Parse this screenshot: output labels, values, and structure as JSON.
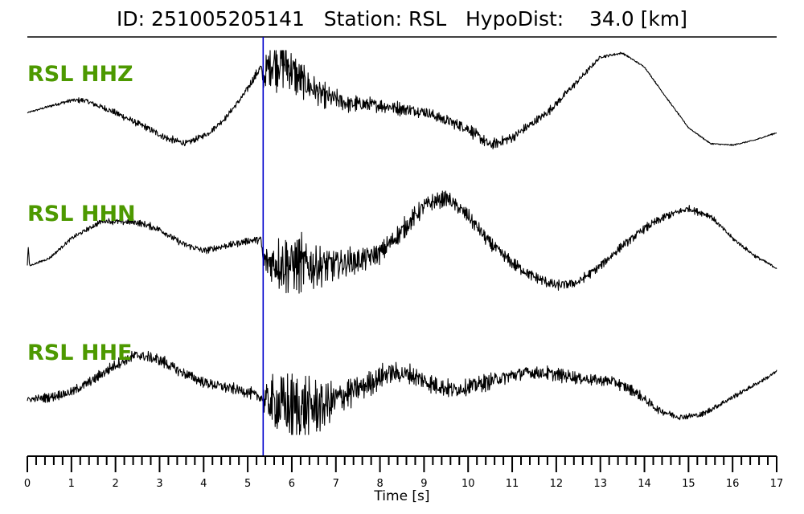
{
  "title": "ID: 251005205141   Station: RSL   HypoDist:    34.0 [km]",
  "colors": {
    "trace": "#000000",
    "label": "#4d9900",
    "pick_line": "#0000cc",
    "axis": "#000000"
  },
  "chart_data": {
    "type": "line",
    "title": "ID: 251005205141   Station: RSL   HypoDist:    34.0 [km]",
    "xlabel": "Time [s]",
    "ylabel": "",
    "xlim": [
      0,
      17
    ],
    "x_ticks": [
      0,
      1,
      2,
      3,
      4,
      5,
      6,
      7,
      8,
      9,
      10,
      11,
      12,
      13,
      14,
      15,
      16,
      17
    ],
    "minor_tick_step": 0.2,
    "pick_time": 5.35,
    "y_axis": "relative amplitude, each trace normalized to its own lane (no printed scale)",
    "series": [
      {
        "name": "RSL HHZ",
        "t": [
          0,
          0.5,
          1.0,
          1.3,
          2.0,
          2.7,
          3.2,
          3.6,
          4.1,
          4.5,
          4.9,
          5.3,
          5.35,
          5.5,
          5.8,
          6.2,
          6.7,
          7.3,
          8.0,
          9.0,
          10.0,
          10.5,
          11.0,
          11.8,
          12.5,
          13.0,
          13.5,
          14.0,
          14.5,
          15.0,
          15.5,
          16.0,
          16.5,
          17.0
        ],
        "y": [
          -0.2,
          -0.07,
          0.05,
          0.05,
          -0.2,
          -0.5,
          -0.73,
          -0.82,
          -0.62,
          -0.3,
          0.15,
          0.72,
          0.45,
          0.8,
          0.85,
          0.45,
          0.15,
          -0.02,
          -0.05,
          -0.18,
          -0.52,
          -0.85,
          -0.7,
          -0.2,
          0.45,
          0.92,
          1.0,
          0.72,
          0.1,
          -0.5,
          -0.82,
          -0.85,
          -0.75,
          -0.6
        ],
        "noise": [
          0.02,
          0.04,
          0.06,
          0.08,
          0.1,
          0.1,
          0.12,
          0.1,
          0.08,
          0.08,
          0.1,
          0.15,
          0.25,
          0.75,
          0.8,
          0.55,
          0.35,
          0.25,
          0.2,
          0.18,
          0.18,
          0.16,
          0.15,
          0.12,
          0.1,
          0.05,
          0.03,
          0.02,
          0.02,
          0.02,
          0.02,
          0.02,
          0.02,
          0.02
        ]
      },
      {
        "name": "RSL HHN",
        "t": [
          0,
          0.02,
          0.05,
          0.5,
          1.0,
          1.7,
          2.5,
          3.0,
          3.5,
          4.0,
          4.5,
          5.0,
          5.3,
          5.35,
          5.8,
          6.5,
          7.0,
          7.5,
          8.0,
          8.5,
          9.0,
          9.5,
          10.0,
          10.5,
          11.0,
          11.5,
          12.0,
          12.5,
          13.0,
          13.5,
          14.0,
          14.5,
          15.0,
          15.5,
          16.0,
          16.5,
          17.0
        ],
        "y": [
          -0.45,
          -0.05,
          -0.45,
          -0.3,
          0.1,
          0.45,
          0.42,
          0.28,
          0.0,
          -0.15,
          -0.05,
          0.05,
          0.08,
          -0.35,
          -0.4,
          -0.45,
          -0.42,
          -0.35,
          -0.2,
          0.25,
          0.75,
          0.92,
          0.55,
          0.0,
          -0.4,
          -0.68,
          -0.85,
          -0.78,
          -0.45,
          -0.05,
          0.3,
          0.55,
          0.7,
          0.55,
          0.1,
          -0.25,
          -0.5
        ],
        "noise": [
          0.02,
          0.02,
          0.02,
          0.04,
          0.06,
          0.08,
          0.1,
          0.1,
          0.1,
          0.1,
          0.1,
          0.1,
          0.12,
          0.4,
          0.9,
          0.7,
          0.5,
          0.38,
          0.3,
          0.28,
          0.25,
          0.22,
          0.22,
          0.2,
          0.18,
          0.16,
          0.16,
          0.14,
          0.12,
          0.12,
          0.12,
          0.12,
          0.1,
          0.08,
          0.06,
          0.05,
          0.04
        ]
      },
      {
        "name": "RSL HHE",
        "t": [
          0,
          0.5,
          1.0,
          1.5,
          2.0,
          2.5,
          3.0,
          3.5,
          4.0,
          4.5,
          5.0,
          5.3,
          5.4,
          5.8,
          6.3,
          6.8,
          7.2,
          7.7,
          8.2,
          8.7,
          9.2,
          9.7,
          10.2,
          10.8,
          11.3,
          11.8,
          12.3,
          12.8,
          13.3,
          13.8,
          14.3,
          14.8,
          15.3,
          15.8,
          16.3,
          16.8,
          17.0
        ],
        "y": [
          -0.35,
          -0.3,
          -0.2,
          0.05,
          0.35,
          0.55,
          0.45,
          0.2,
          0.0,
          -0.1,
          -0.2,
          -0.3,
          -0.35,
          -0.5,
          -0.55,
          -0.45,
          -0.25,
          -0.05,
          0.2,
          0.15,
          -0.05,
          -0.15,
          -0.05,
          0.1,
          0.2,
          0.18,
          0.12,
          0.05,
          0.02,
          -0.2,
          -0.55,
          -0.7,
          -0.65,
          -0.4,
          -0.15,
          0.1,
          0.22
        ],
        "noise": [
          0.1,
          0.12,
          0.14,
          0.15,
          0.16,
          0.18,
          0.18,
          0.16,
          0.16,
          0.16,
          0.15,
          0.18,
          0.5,
          1.1,
          1.0,
          0.7,
          0.45,
          0.35,
          0.3,
          0.28,
          0.26,
          0.25,
          0.25,
          0.22,
          0.2,
          0.2,
          0.18,
          0.16,
          0.16,
          0.14,
          0.12,
          0.1,
          0.08,
          0.08,
          0.06,
          0.05,
          0.05
        ]
      }
    ],
    "grid": false,
    "legend": "none (trace names drawn at left of each lane)"
  }
}
